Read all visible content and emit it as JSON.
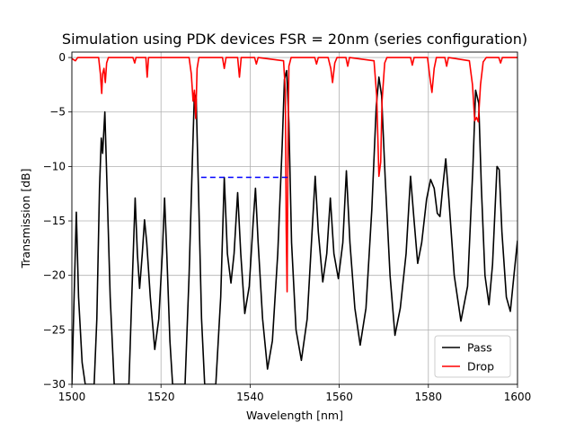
{
  "chart_data": {
    "type": "line",
    "title": "Simulation using PDK devices FSR = 20nm (series configuration)",
    "xlabel": "Wavelength [nm]",
    "ylabel": "Transmission [dB]",
    "xlim": [
      1500,
      1600
    ],
    "ylim": [
      -30,
      0.5
    ],
    "xticks": [
      1500,
      1520,
      1540,
      1560,
      1580,
      1600
    ],
    "yticks": [
      0,
      -5,
      -10,
      -15,
      -20,
      -25,
      -30
    ],
    "grid": true,
    "legend_position": "lower-right",
    "series": [
      {
        "name": "Pass",
        "color": "#000000",
        "points": [
          [
            1500.0,
            -30
          ],
          [
            1500.5,
            -22
          ],
          [
            1501.0,
            -14.2
          ],
          [
            1501.5,
            -22
          ],
          [
            1502.3,
            -28
          ],
          [
            1503.0,
            -30
          ],
          [
            1505.0,
            -30
          ],
          [
            1505.6,
            -24
          ],
          [
            1506.2,
            -12
          ],
          [
            1506.6,
            -7.4
          ],
          [
            1506.9,
            -8.8
          ],
          [
            1507.4,
            -5.0
          ],
          [
            1507.9,
            -12
          ],
          [
            1508.6,
            -22
          ],
          [
            1509.5,
            -30
          ],
          [
            1512.8,
            -30
          ],
          [
            1513.6,
            -20
          ],
          [
            1514.2,
            -12.9
          ],
          [
            1514.7,
            -18
          ],
          [
            1515.2,
            -21.2
          ],
          [
            1515.8,
            -18
          ],
          [
            1516.3,
            -14.9
          ],
          [
            1516.8,
            -17
          ],
          [
            1517.6,
            -22
          ],
          [
            1518.6,
            -26.8
          ],
          [
            1519.5,
            -24
          ],
          [
            1520.3,
            -18
          ],
          [
            1520.8,
            -12.9
          ],
          [
            1521.3,
            -18
          ],
          [
            1522.0,
            -26
          ],
          [
            1522.6,
            -30
          ],
          [
            1525.4,
            -30
          ],
          [
            1526.3,
            -20
          ],
          [
            1527.0,
            -10
          ],
          [
            1527.5,
            -3.3
          ],
          [
            1527.9,
            -3.8
          ],
          [
            1528.4,
            -12
          ],
          [
            1529.1,
            -24
          ],
          [
            1529.8,
            -30
          ],
          [
            1532.3,
            -30
          ],
          [
            1533.4,
            -22
          ],
          [
            1534.2,
            -11
          ],
          [
            1534.9,
            -18
          ],
          [
            1535.7,
            -20.7
          ],
          [
            1536.4,
            -18
          ],
          [
            1537.2,
            -12.4
          ],
          [
            1537.9,
            -18
          ],
          [
            1538.8,
            -23.5
          ],
          [
            1539.8,
            -21
          ],
          [
            1540.7,
            -15
          ],
          [
            1541.2,
            -12.0
          ],
          [
            1541.8,
            -17
          ],
          [
            1542.8,
            -24
          ],
          [
            1543.9,
            -28.6
          ],
          [
            1545.0,
            -26
          ],
          [
            1546.2,
            -18
          ],
          [
            1547.2,
            -8
          ],
          [
            1547.7,
            -2
          ],
          [
            1548.2,
            -1.2
          ],
          [
            1548.7,
            -6
          ],
          [
            1549.3,
            -17
          ],
          [
            1550.3,
            -25
          ],
          [
            1551.5,
            -27.8
          ],
          [
            1552.8,
            -24
          ],
          [
            1553.9,
            -16
          ],
          [
            1554.6,
            -10.9
          ],
          [
            1555.3,
            -16
          ],
          [
            1556.3,
            -20.6
          ],
          [
            1557.2,
            -18
          ],
          [
            1558.0,
            -12.9
          ],
          [
            1558.8,
            -18
          ],
          [
            1559.8,
            -20.3
          ],
          [
            1560.8,
            -17
          ],
          [
            1561.6,
            -10.4
          ],
          [
            1562.4,
            -17
          ],
          [
            1563.5,
            -23
          ],
          [
            1564.7,
            -26.4
          ],
          [
            1566.0,
            -23
          ],
          [
            1567.3,
            -14
          ],
          [
            1568.3,
            -4.5
          ],
          [
            1568.9,
            -1.8
          ],
          [
            1569.5,
            -3.5
          ],
          [
            1570.3,
            -11
          ],
          [
            1571.4,
            -20
          ],
          [
            1572.5,
            -25.5
          ],
          [
            1573.7,
            -23
          ],
          [
            1575.0,
            -18
          ],
          [
            1576.0,
            -10.9
          ],
          [
            1576.8,
            -15
          ],
          [
            1577.6,
            -18.9
          ],
          [
            1578.5,
            -17
          ],
          [
            1579.6,
            -13
          ],
          [
            1580.5,
            -11.2
          ],
          [
            1581.3,
            -12
          ],
          [
            1582.0,
            -14.3
          ],
          [
            1582.6,
            -14.6
          ],
          [
            1583.2,
            -12
          ],
          [
            1583.9,
            -9.3
          ],
          [
            1584.6,
            -13
          ],
          [
            1585.8,
            -20
          ],
          [
            1587.3,
            -24.2
          ],
          [
            1588.8,
            -21
          ],
          [
            1590.0,
            -10
          ],
          [
            1590.6,
            -3.0
          ],
          [
            1591.3,
            -4.2
          ],
          [
            1591.9,
            -12
          ],
          [
            1592.7,
            -20
          ],
          [
            1593.6,
            -22.7
          ],
          [
            1594.4,
            -19
          ],
          [
            1595.4,
            -10
          ],
          [
            1595.9,
            -10.3
          ],
          [
            1596.5,
            -16
          ],
          [
            1597.5,
            -22
          ],
          [
            1598.4,
            -23.3
          ],
          [
            1599.2,
            -20
          ],
          [
            1600.0,
            -16.8
          ]
        ]
      },
      {
        "name": "Drop",
        "color": "#ff0000",
        "points": [
          [
            1500.0,
            -0.1
          ],
          [
            1500.8,
            -0.3
          ],
          [
            1501.3,
            0.0
          ],
          [
            1506.0,
            0.0
          ],
          [
            1506.4,
            -1.5
          ],
          [
            1506.7,
            -3.3
          ],
          [
            1506.9,
            -1.5
          ],
          [
            1507.2,
            -1.0
          ],
          [
            1507.5,
            -2.3
          ],
          [
            1507.8,
            -0.5
          ],
          [
            1508.2,
            0.0
          ],
          [
            1513.7,
            0.0
          ],
          [
            1514.1,
            -0.5
          ],
          [
            1514.4,
            0.0
          ],
          [
            1516.6,
            0.0
          ],
          [
            1516.9,
            -1.8
          ],
          [
            1517.2,
            0.0
          ],
          [
            1526.3,
            0.0
          ],
          [
            1526.8,
            -1.5
          ],
          [
            1527.2,
            -4.0
          ],
          [
            1527.5,
            -3.0
          ],
          [
            1527.8,
            -5.6
          ],
          [
            1528.1,
            -1.0
          ],
          [
            1528.5,
            0.0
          ],
          [
            1533.8,
            0.0
          ],
          [
            1534.2,
            -1.0
          ],
          [
            1534.6,
            0.0
          ],
          [
            1537.2,
            0.0
          ],
          [
            1537.6,
            -1.8
          ],
          [
            1538.0,
            0.0
          ],
          [
            1541.0,
            0.0
          ],
          [
            1541.4,
            -0.6
          ],
          [
            1541.8,
            0.0
          ],
          [
            1547.5,
            -0.3
          ],
          [
            1547.9,
            -3.0
          ],
          [
            1548.1,
            -15.8
          ],
          [
            1548.3,
            -21.5
          ],
          [
            1548.5,
            -8
          ],
          [
            1548.7,
            -0.8
          ],
          [
            1549.2,
            0.0
          ],
          [
            1554.5,
            0.0
          ],
          [
            1554.9,
            -0.6
          ],
          [
            1555.3,
            0.0
          ],
          [
            1557.5,
            0.0
          ],
          [
            1558.1,
            -1.0
          ],
          [
            1558.5,
            -2.3
          ],
          [
            1559.0,
            -0.5
          ],
          [
            1559.5,
            0.0
          ],
          [
            1561.5,
            0.0
          ],
          [
            1561.9,
            -0.8
          ],
          [
            1562.3,
            0.0
          ],
          [
            1567.8,
            -0.3
          ],
          [
            1568.4,
            -3.5
          ],
          [
            1568.9,
            -10.9
          ],
          [
            1569.3,
            -9.6
          ],
          [
            1569.6,
            -4.0
          ],
          [
            1570.2,
            -0.5
          ],
          [
            1570.7,
            0.0
          ],
          [
            1576.0,
            0.0
          ],
          [
            1576.4,
            -0.7
          ],
          [
            1576.8,
            0.0
          ],
          [
            1579.8,
            0.0
          ],
          [
            1580.4,
            -2.0
          ],
          [
            1580.8,
            -3.2
          ],
          [
            1581.3,
            -1.0
          ],
          [
            1581.8,
            0.0
          ],
          [
            1583.7,
            0.0
          ],
          [
            1584.1,
            -0.8
          ],
          [
            1584.5,
            0.0
          ],
          [
            1589.2,
            -0.3
          ],
          [
            1589.9,
            -2.5
          ],
          [
            1590.4,
            -5.8
          ],
          [
            1590.8,
            -5.5
          ],
          [
            1591.2,
            -5.9
          ],
          [
            1591.7,
            -2.5
          ],
          [
            1592.3,
            -0.4
          ],
          [
            1593.0,
            0.0
          ],
          [
            1595.8,
            0.0
          ],
          [
            1596.2,
            -0.5
          ],
          [
            1596.6,
            0.0
          ],
          [
            1600.0,
            0.0
          ]
        ]
      },
      {
        "name": "",
        "color": "#0000ff",
        "dashed": true,
        "points": [
          [
            1529.0,
            -11.0
          ],
          [
            1548.5,
            -11.0
          ]
        ]
      }
    ]
  }
}
